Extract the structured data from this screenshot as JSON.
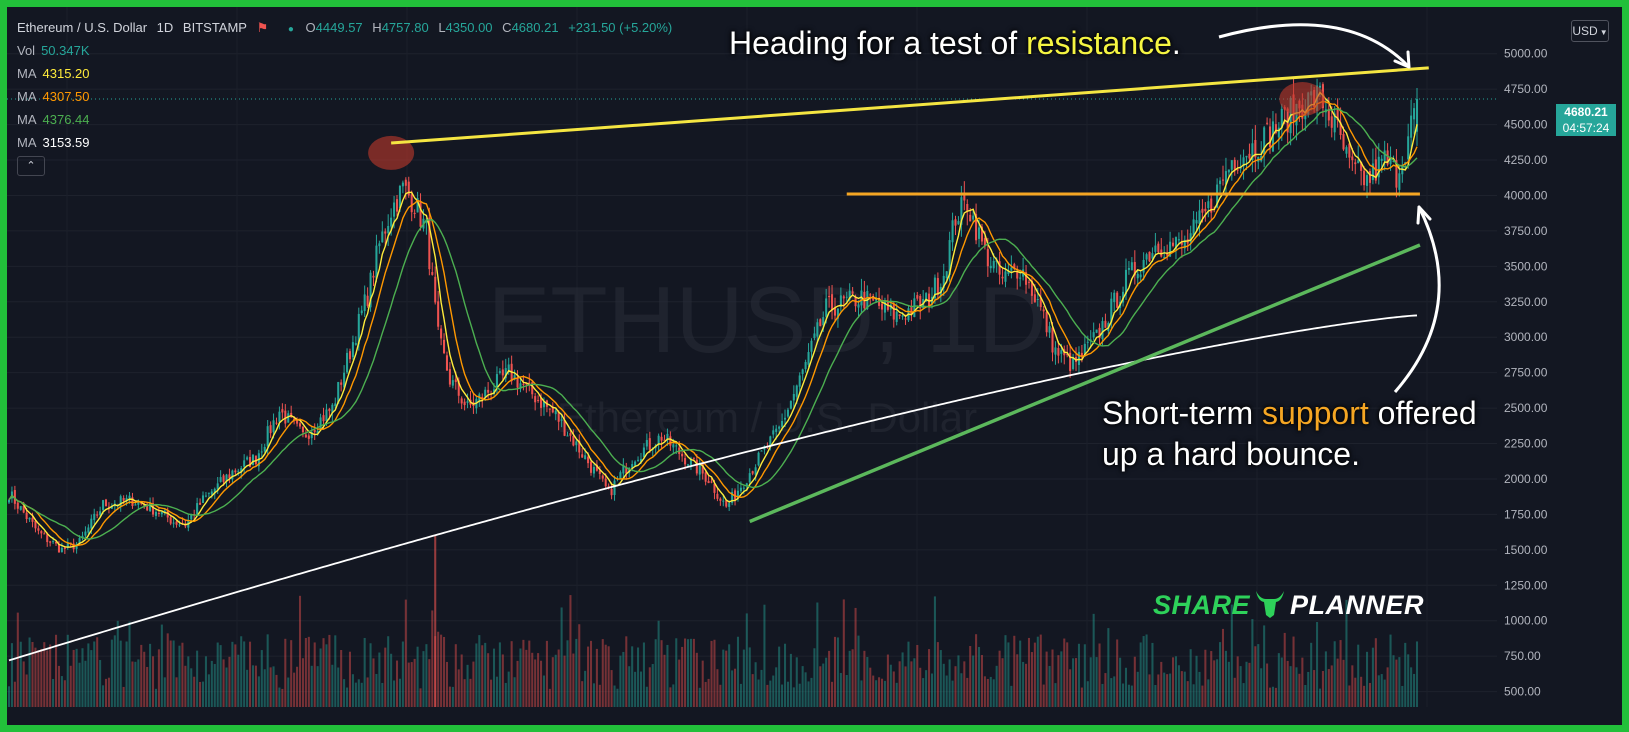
{
  "header": {
    "symbol_name": "Ethereum / U.S. Dollar",
    "interval": "1D",
    "exchange": "BITSTAMP",
    "ohlc": {
      "open_label": "O",
      "open": "4449.57",
      "high_label": "H",
      "high": "4757.80",
      "low_label": "L",
      "low": "4350.00",
      "close_label": "C",
      "close": "4680.21",
      "change": "+231.50 (+5.20%)"
    }
  },
  "indicators": [
    {
      "label": "Vol",
      "value": "50.347K",
      "color": "#26a69a"
    },
    {
      "label": "MA",
      "value": "4315.20",
      "color": "#ffeb3b"
    },
    {
      "label": "MA",
      "value": "4307.50",
      "color": "#ff9800"
    },
    {
      "label": "MA",
      "value": "4376.44",
      "color": "#4caf50"
    },
    {
      "label": "MA",
      "value": "3153.59",
      "color": "#ffffff"
    }
  ],
  "collapse_glyph": "⌃",
  "currency": "USD",
  "last_price": {
    "value": "4680.21",
    "countdown": "04:57:24",
    "color": "#26a69a"
  },
  "annotations": {
    "top": {
      "pre": "Heading for a test of ",
      "highlight": "resistance",
      "post": "."
    },
    "bottom": {
      "line1_pre": "Short-term ",
      "line1_highlight": "support",
      "line1_post": " offered",
      "line2": "up a hard bounce."
    }
  },
  "watermark": {
    "symbol": "ETHUSD, 1D",
    "name": "Ethereum / U.S. Dollar"
  },
  "logo": {
    "part1": "SHARE",
    "part2": "PLANNER",
    "icon": "bull-head-icon"
  },
  "colors": {
    "up": "#26a69a",
    "down": "#ef5350",
    "resistance": "#f5e642",
    "support": "#f5a623",
    "trend": "#5cb85c",
    "ma200": "#ffffff",
    "highlight": "#c0392b"
  },
  "chart_data": {
    "type": "candlestick",
    "interval": "1D",
    "y_ticks": [
      500,
      750,
      1000,
      1250,
      1500,
      1750,
      2000,
      2250,
      2500,
      2750,
      3000,
      3250,
      3500,
      3750,
      4000,
      4250,
      4500,
      4750,
      5000
    ],
    "ylim": [
      370,
      5280
    ],
    "approx_close_path": [
      [
        0,
        1900
      ],
      [
        10,
        1620
      ],
      [
        18,
        1500
      ],
      [
        24,
        1550
      ],
      [
        32,
        1820
      ],
      [
        42,
        1850
      ],
      [
        50,
        1780
      ],
      [
        56,
        1700
      ],
      [
        60,
        1680
      ],
      [
        66,
        1850
      ],
      [
        76,
        2050
      ],
      [
        84,
        2150
      ],
      [
        92,
        2480
      ],
      [
        100,
        2300
      ],
      [
        104,
        2380
      ],
      [
        110,
        2500
      ],
      [
        116,
        2900
      ],
      [
        122,
        3300
      ],
      [
        126,
        3650
      ],
      [
        130,
        3900
      ],
      [
        134,
        4050
      ],
      [
        138,
        3950
      ],
      [
        142,
        3750
      ],
      [
        146,
        3000
      ],
      [
        150,
        2700
      ],
      [
        156,
        2500
      ],
      [
        162,
        2600
      ],
      [
        170,
        2750
      ],
      [
        178,
        2600
      ],
      [
        186,
        2450
      ],
      [
        196,
        2150
      ],
      [
        204,
        1900
      ],
      [
        212,
        2150
      ],
      [
        222,
        2300
      ],
      [
        230,
        2150
      ],
      [
        238,
        2000
      ],
      [
        244,
        1800
      ],
      [
        252,
        2050
      ],
      [
        262,
        2350
      ],
      [
        270,
        2750
      ],
      [
        278,
        3200
      ],
      [
        290,
        3280
      ],
      [
        302,
        3150
      ],
      [
        312,
        3250
      ],
      [
        318,
        3450
      ],
      [
        322,
        3850
      ],
      [
        326,
        3950
      ],
      [
        332,
        3600
      ],
      [
        338,
        3400
      ],
      [
        344,
        3500
      ],
      [
        350,
        3250
      ],
      [
        356,
        2900
      ],
      [
        362,
        2800
      ],
      [
        370,
        3000
      ],
      [
        380,
        3400
      ],
      [
        390,
        3650
      ],
      [
        400,
        3650
      ],
      [
        408,
        3900
      ],
      [
        416,
        4250
      ],
      [
        424,
        4350
      ],
      [
        432,
        4500
      ],
      [
        440,
        4650
      ],
      [
        446,
        4700
      ],
      [
        452,
        4450
      ],
      [
        456,
        4200
      ],
      [
        462,
        4100
      ],
      [
        468,
        4250
      ],
      [
        472,
        4150
      ],
      [
        476,
        4400
      ],
      [
        479,
        4680
      ]
    ],
    "volume_ticks_note": "volume histogram under price pane",
    "lines": {
      "resistance": {
        "start": [
          130,
          4370
        ],
        "end": [
          483,
          4900
        ]
      },
      "support": {
        "value": 4010,
        "start_index": 285,
        "end_index": 480
      },
      "trend": {
        "start": [
          252,
          1700
        ],
        "end": [
          480,
          3650
        ]
      }
    },
    "ma200_endpoints": {
      "start": 720,
      "end": 3153.59
    }
  }
}
